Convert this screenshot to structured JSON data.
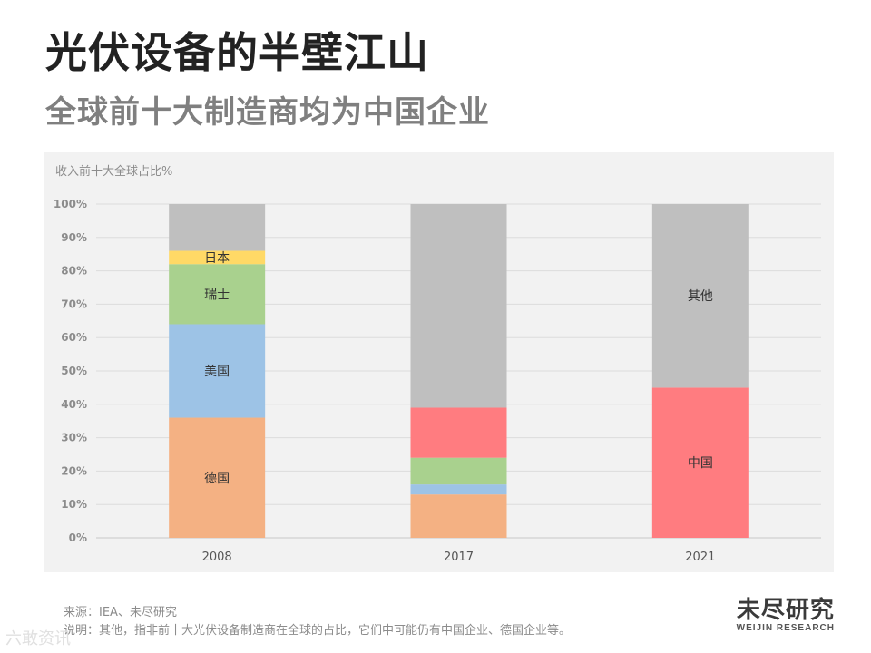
{
  "header": {
    "title": "光伏设备的半壁江山",
    "subtitle": "全球前十大制造商均为中国企业"
  },
  "chart_data": {
    "type": "bar",
    "stacked": true,
    "ylabel": "收入前十大全球占比%",
    "ylim": [
      0,
      100
    ],
    "yticks": [
      "0%",
      "10%",
      "20%",
      "30%",
      "40%",
      "50%",
      "60%",
      "70%",
      "80%",
      "90%",
      "100%"
    ],
    "categories": [
      "2008",
      "2017",
      "2021"
    ],
    "grid": true,
    "series": [
      {
        "name": "德国",
        "color": "#f4b183",
        "values": [
          36,
          13,
          0
        ],
        "labels": [
          "德国",
          "",
          ""
        ]
      },
      {
        "name": "美国",
        "color": "#9dc3e6",
        "values": [
          28,
          3,
          0
        ],
        "labels": [
          "美国",
          "",
          ""
        ]
      },
      {
        "name": "瑞士",
        "color": "#a9d18e",
        "values": [
          18,
          8,
          0
        ],
        "labels": [
          "瑞士",
          "",
          ""
        ]
      },
      {
        "name": "日本",
        "color": "#ffd966",
        "values": [
          4,
          0,
          0
        ],
        "labels": [
          "日本",
          "",
          ""
        ]
      },
      {
        "name": "中国",
        "color": "#ff7c80",
        "values": [
          0,
          15,
          45
        ],
        "labels": [
          "",
          "",
          "中国"
        ]
      },
      {
        "name": "其他",
        "color": "#bfbfbf",
        "values": [
          14,
          61,
          55
        ],
        "labels": [
          "",
          "",
          "其他"
        ]
      }
    ]
  },
  "footer": {
    "source": "来源：IEA、未尽研究",
    "note": "说明：其他，指非前十大光伏设备制造商在全球的占比，它们中可能仍有中国企业、德国企业等。"
  },
  "logo": {
    "main": "未尽研究",
    "sub": "WEIJIN RESEARCH"
  },
  "watermark": "六敢资讯"
}
